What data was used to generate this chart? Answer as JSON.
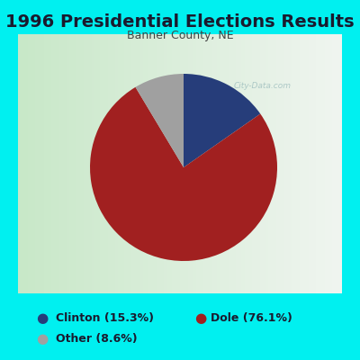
{
  "title": "1996 Presidential Elections Results",
  "subtitle": "Banner County, NE",
  "slices": [
    15.3,
    76.1,
    8.6
  ],
  "colors": [
    "#263d7a",
    "#a12020",
    "#a0a0a0"
  ],
  "legend_labels": [
    "Clinton (15.3%)",
    "Dole (76.1%)",
    "Other (8.6%)"
  ],
  "background_outer": "#00f0f0",
  "background_inner_left": "#c8e8c8",
  "background_inner_right": "#f0f5f0",
  "title_fontsize": 14,
  "subtitle_fontsize": 9,
  "start_angle": 90
}
